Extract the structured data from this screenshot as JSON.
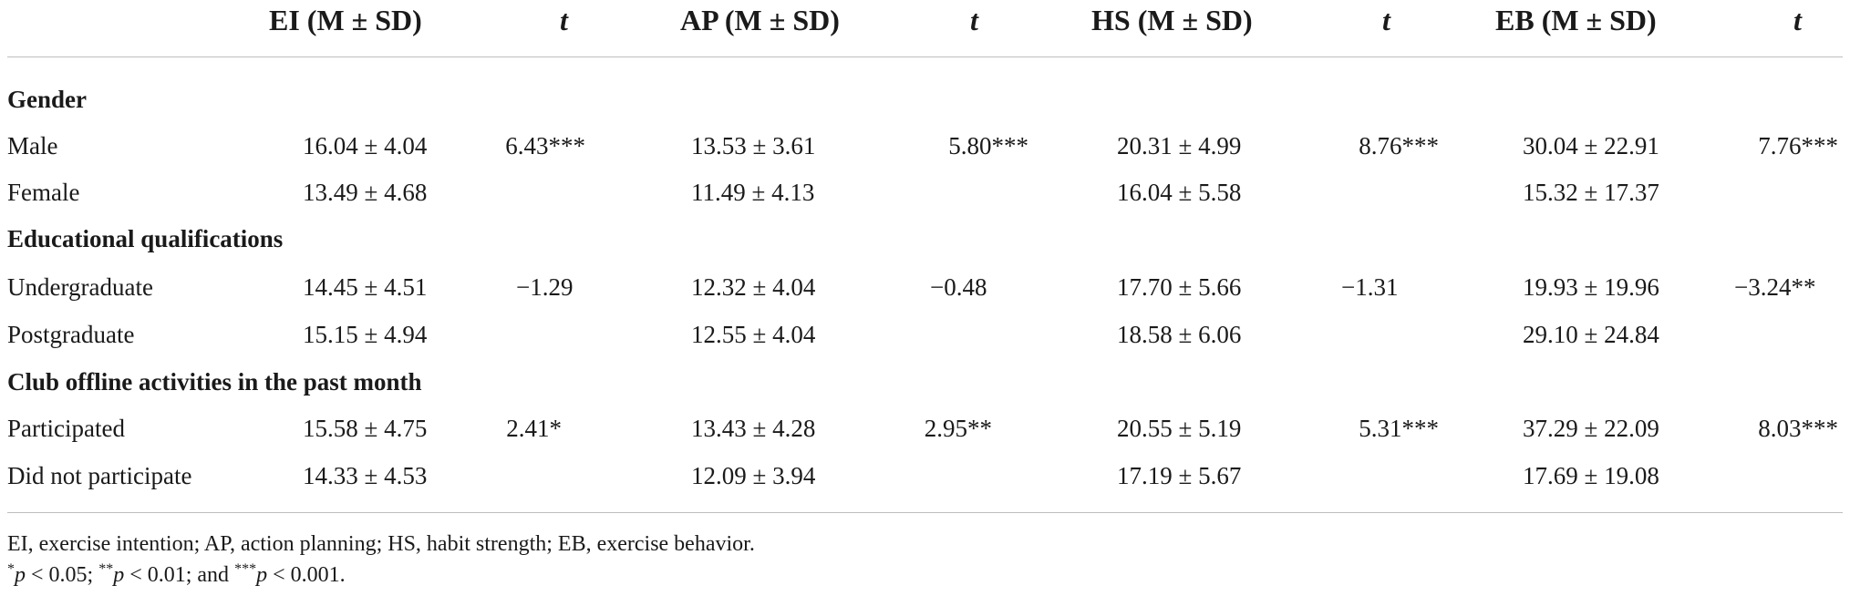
{
  "header": {
    "ei": "EI (M ± SD)",
    "ei_t": "t",
    "ap": "AP (M ± SD)",
    "ap_t": "t",
    "hs": "HS (M ± SD)",
    "hs_t": "t",
    "eb": "EB (M ± SD)",
    "eb_t": "t"
  },
  "sections": [
    {
      "title": "Gender",
      "rows": [
        {
          "label": "Male",
          "ei": "16.04 ± 4.04",
          "ei_t": "6.43***",
          "ap": "13.53 ± 3.61",
          "ap_t": "5.80***",
          "hs": "20.31 ± 4.99",
          "hs_t": "8.76***",
          "eb": "30.04 ± 22.91",
          "eb_t": "7.76***"
        },
        {
          "label": "Female",
          "ei": "13.49 ± 4.68",
          "ei_t": "",
          "ap": "11.49 ± 4.13",
          "ap_t": "",
          "hs": "16.04 ± 5.58",
          "hs_t": "",
          "eb": "15.32 ± 17.37",
          "eb_t": ""
        }
      ]
    },
    {
      "title": "Educational qualifications",
      "rows": [
        {
          "label": "Undergraduate",
          "ei": "14.45 ± 4.51",
          "ei_t": "−1.29",
          "ap": "12.32 ± 4.04",
          "ap_t": "−0.48",
          "hs": "17.70 ± 5.66",
          "hs_t": "−1.31",
          "eb": "19.93 ± 19.96",
          "eb_t": "−3.24**"
        },
        {
          "label": "Postgraduate",
          "ei": "15.15 ± 4.94",
          "ei_t": "",
          "ap": "12.55 ± 4.04",
          "ap_t": "",
          "hs": "18.58 ± 6.06",
          "hs_t": "",
          "eb": "29.10 ± 24.84",
          "eb_t": ""
        }
      ]
    },
    {
      "title": "Club offline activities in the past month",
      "rows": [
        {
          "label": "Participated",
          "ei": "15.58 ± 4.75",
          "ei_t": "2.41*",
          "ap": "13.43 ± 4.28",
          "ap_t": "2.95**",
          "hs": "20.55 ± 5.19",
          "hs_t": "5.31***",
          "eb": "37.29 ± 22.09",
          "eb_t": "8.03***"
        },
        {
          "label": "Did not participate",
          "ei": "14.33 ± 4.53",
          "ei_t": "",
          "ap": "12.09 ± 3.94",
          "ap_t": "",
          "hs": "17.19 ± 5.67",
          "hs_t": "",
          "eb": "17.69 ± 19.08",
          "eb_t": ""
        }
      ]
    }
  ],
  "footnotes": {
    "abbrev": "EI, exercise intention; AP, action planning; HS, habit strength; EB, exercise behavior.",
    "p1_sym": "*",
    "p1_var": "p",
    "p1_txt": " < 0.05; ",
    "p2_sym": "**",
    "p2_var": "p",
    "p2_txt": " < 0.01; and ",
    "p3_sym": "***",
    "p3_var": "p",
    "p3_txt": " < 0.001."
  }
}
